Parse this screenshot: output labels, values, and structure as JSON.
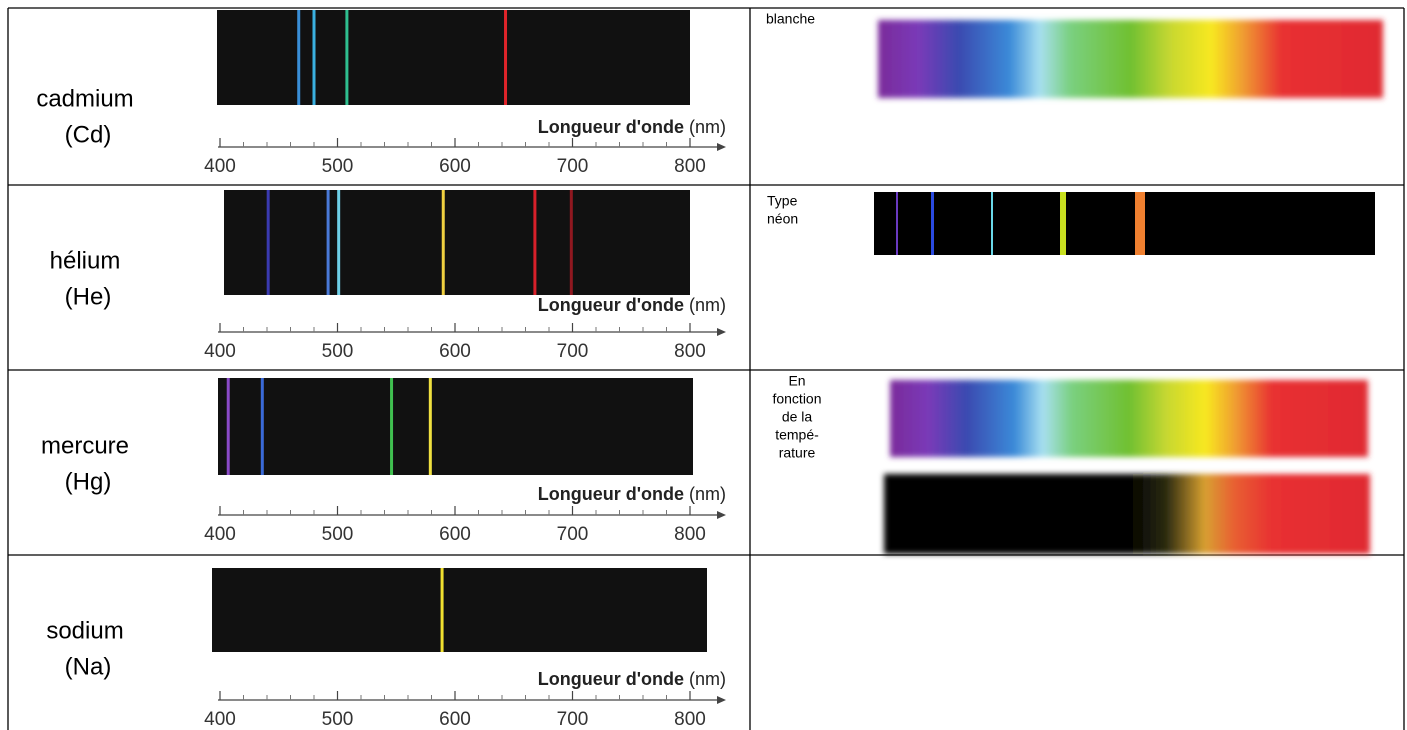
{
  "axis": {
    "title": "Longueur d'onde",
    "unit": "(nm)",
    "xlim": [
      400,
      800
    ],
    "ticks": [
      400,
      500,
      600,
      700,
      800
    ]
  },
  "rows": [
    {
      "name": "cadmium",
      "symbol": "(Cd)",
      "lines": [
        {
          "wavelength": 467,
          "color": "#3a8fd8"
        },
        {
          "wavelength": 480,
          "color": "#3ab0e0"
        },
        {
          "wavelength": 508,
          "color": "#2fbf8f"
        },
        {
          "wavelength": 643,
          "color": "#e0242a"
        }
      ]
    },
    {
      "name": "hélium",
      "symbol": "(He)",
      "lines": [
        {
          "wavelength": 441,
          "color": "#3a3ab0"
        },
        {
          "wavelength": 492,
          "color": "#4a7ad8"
        },
        {
          "wavelength": 501,
          "color": "#6fd0e8"
        },
        {
          "wavelength": 590,
          "color": "#f0d040"
        },
        {
          "wavelength": 668,
          "color": "#d8202a"
        },
        {
          "wavelength": 699,
          "color": "#901820"
        }
      ]
    },
    {
      "name": "mercure",
      "symbol": "(Hg)",
      "lines": [
        {
          "wavelength": 407,
          "color": "#8a4ac8"
        },
        {
          "wavelength": 436,
          "color": "#3a6ad8"
        },
        {
          "wavelength": 546,
          "color": "#40c050"
        },
        {
          "wavelength": 579,
          "color": "#f0e040"
        }
      ]
    },
    {
      "name": "sodium",
      "symbol": "(Na)",
      "lines": [
        {
          "wavelength": 589,
          "color": "#f0e030"
        }
      ]
    }
  ],
  "side": {
    "white": [
      "blanche"
    ],
    "neon": [
      "Type",
      "néon"
    ],
    "temperature": [
      "En",
      "fonction",
      "de la",
      "tempé-",
      "rature"
    ]
  }
}
